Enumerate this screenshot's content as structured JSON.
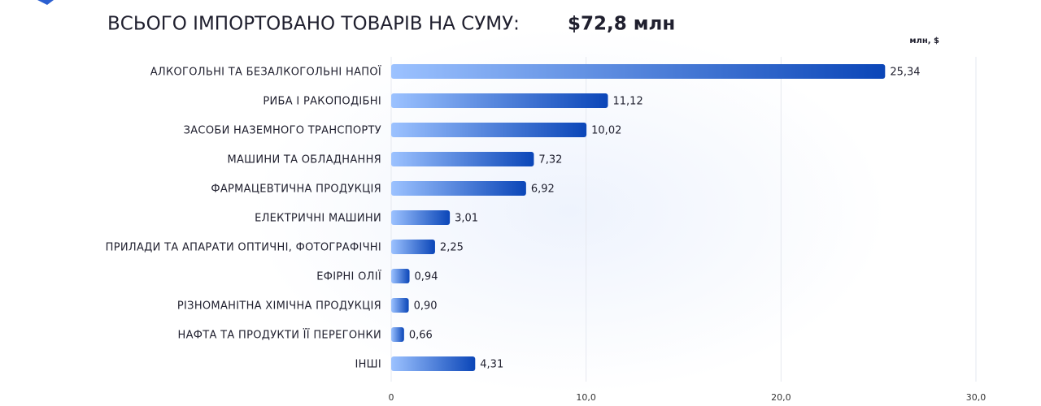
{
  "chart_data": {
    "type": "bar",
    "orientation": "horizontal",
    "title": "ВСЬОГО ІМПОРТОВАНО ТОВАРІВ НА СУМУ:",
    "total": "$72,8 млн",
    "unit_label": "млн, $",
    "categories": [
      "АЛКОГОЛЬНІ ТА БЕЗАЛКОГОЛЬНІ НАПОЇ",
      "РИБА І РАКОПОДІБНІ",
      "ЗАСОБИ НАЗЕМНОГО ТРАНСПОРТУ",
      "МАШИНИ ТА ОБЛАДНАННЯ",
      "ФАРМАЦЕВТИЧНА ПРОДУКЦІЯ",
      "ЕЛЕКТРИЧНІ МАШИНИ",
      "ПРИЛАДИ ТА АПАРАТИ ОПТИЧНІ, ФОТОГРАФІЧНІ",
      "ЕФІРНІ ОЛІЇ",
      "РІЗНОМАНІТНА ХІМІЧНА ПРОДУКЦІЯ",
      "НАФТА ТА ПРОДУКТИ ЇЇ ПЕРЕГОНКИ",
      "ІНШІ"
    ],
    "values": [
      25.34,
      11.12,
      10.02,
      7.32,
      6.92,
      3.01,
      2.25,
      0.94,
      0.9,
      0.66,
      4.31
    ],
    "value_labels": [
      "25,34",
      "11,12",
      "10,02",
      "7,32",
      "6,92",
      "3,01",
      "2,25",
      "0,94",
      "0,90",
      "0,66",
      "4,31"
    ],
    "color": [
      "#9cc2ff",
      "#0b46b8"
    ],
    "xlim": [
      0,
      30
    ],
    "xticks": [
      0,
      {
        "value": 10,
        "label": "10,0"
      },
      {
        "value": 20,
        "label": "20,0"
      },
      {
        "value": 30,
        "label": "30,0"
      }
    ],
    "grid": true
  }
}
